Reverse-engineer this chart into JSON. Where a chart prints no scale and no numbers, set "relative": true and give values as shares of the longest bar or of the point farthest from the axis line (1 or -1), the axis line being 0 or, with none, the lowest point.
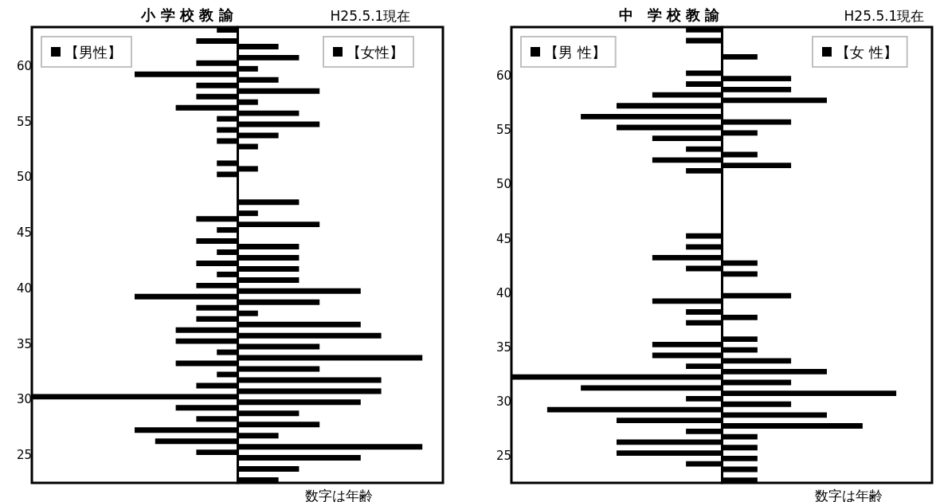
{
  "chart_data": [
    {
      "type": "bar",
      "orientation": "horizontal",
      "relative": true,
      "title": "小 学 校 教 諭",
      "annotations": [
        "H25.5.1現在",
        "数字は年齢"
      ],
      "legend": "top",
      "tick_labels": "y",
      "grid": false,
      "categories": [
        null,
        null,
        null,
        "60",
        null,
        null,
        null,
        null,
        "55",
        null,
        null,
        null,
        null,
        "50",
        null,
        null,
        null,
        null,
        "45",
        null,
        null,
        null,
        null,
        "40",
        null,
        null,
        null,
        null,
        "35",
        null,
        null,
        null,
        null,
        "30",
        null,
        null,
        null,
        null,
        "25",
        null,
        null
      ],
      "series": [
        {
          "name": "【男性】",
          "color": "#000000",
          "values": [
            -0.1,
            -0.2,
            0,
            -0.2,
            -0.5,
            -0.2,
            -0.2,
            -0.3,
            -0.1,
            -0.1,
            -0.1,
            0,
            -0.1,
            -0.1,
            0,
            0,
            0,
            -0.2,
            -0.1,
            -0.2,
            -0.1,
            -0.2,
            -0.1,
            -0.2,
            -0.5,
            -0.2,
            -0.2,
            -0.3,
            -0.3,
            -0.1,
            -0.3,
            -0.1,
            -0.2,
            -1,
            -0.3,
            -0.2,
            -0.5,
            -0.4,
            -0.2,
            0,
            0
          ]
        },
        {
          "name": "【女性】",
          "color": "#000000",
          "values": [
            0,
            0.2,
            0.3,
            0.1,
            0.2,
            0.4,
            0.1,
            0.3,
            0.4,
            0.2,
            0.1,
            0,
            0.1,
            0,
            0,
            0.3,
            0.1,
            0.4,
            0,
            0.3,
            0.3,
            0.3,
            0.3,
            0.6,
            0.4,
            0.1,
            0.6,
            0.7,
            0.4,
            0.9,
            0.4,
            0.7,
            0.7,
            0.6,
            0.3,
            0.4,
            0.2,
            0.9,
            0.6,
            0.3,
            0.2
          ]
        }
      ]
    },
    {
      "type": "bar",
      "orientation": "horizontal",
      "relative": true,
      "title": "中　学 校 教 諭",
      "annotations": [
        "H25.5.1現在",
        "数字は年齢"
      ],
      "legend": "top",
      "tick_labels": "y",
      "grid": false,
      "categories": [
        null,
        null,
        null,
        null,
        "60",
        null,
        null,
        null,
        null,
        "55",
        null,
        null,
        null,
        null,
        "50",
        null,
        null,
        null,
        null,
        "45",
        null,
        null,
        null,
        null,
        "40",
        null,
        null,
        null,
        null,
        "35",
        null,
        null,
        null,
        null,
        "30",
        null,
        null,
        null,
        null,
        "25",
        null,
        null
      ],
      "series": [
        {
          "name": "【男 性】",
          "color": "#000000",
          "values": [
            -0.17,
            -0.17,
            0,
            0,
            -0.17,
            -0.17,
            -0.33,
            -0.5,
            -0.67,
            -0.5,
            -0.33,
            -0.17,
            -0.33,
            -0.17,
            0,
            0,
            0,
            0,
            0,
            -0.17,
            -0.17,
            -0.33,
            -0.17,
            0,
            0,
            -0.33,
            -0.17,
            -0.17,
            0,
            -0.33,
            -0.33,
            -0.17,
            -1,
            -0.67,
            -0.17,
            -0.83,
            -0.5,
            -0.17,
            -0.5,
            -0.5,
            -0.17,
            0
          ]
        },
        {
          "name": "【女 性】",
          "color": "#000000",
          "values": [
            0,
            0,
            0.17,
            0,
            0.33,
            0.33,
            0.5,
            0,
            0.33,
            0.17,
            0,
            0.17,
            0.33,
            0,
            0,
            0,
            0,
            0,
            0,
            0,
            0,
            0.17,
            0.17,
            0,
            0.33,
            0,
            0.17,
            0,
            0.17,
            0.17,
            0.33,
            0.5,
            0.33,
            0.83,
            0.33,
            0.5,
            0.67,
            0.17,
            0.17,
            0.17,
            0.17,
            0.17
          ]
        }
      ]
    }
  ]
}
